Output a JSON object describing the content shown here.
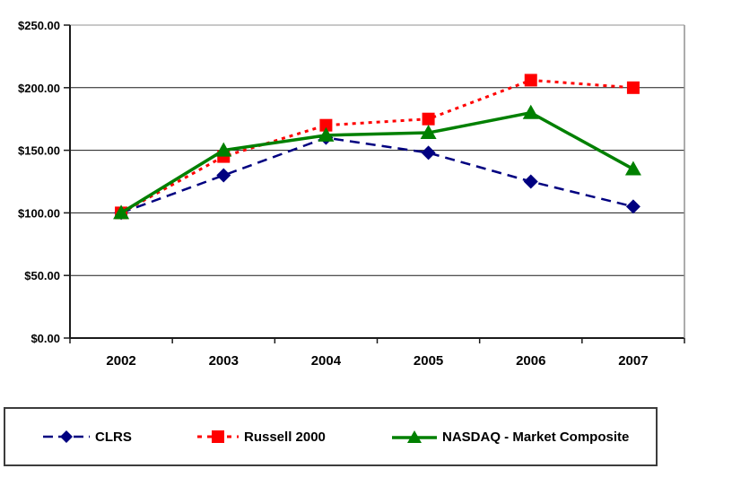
{
  "chart_data": {
    "type": "line",
    "title": "",
    "xlabel": "",
    "ylabel": "",
    "grid": true,
    "legend_position": "bottom",
    "categories": [
      "2002",
      "2003",
      "2004",
      "2005",
      "2006",
      "2007"
    ],
    "series": [
      {
        "name": "CLRS",
        "color": "#000080",
        "marker": "diamond",
        "line_style": "dashed",
        "values": [
          100,
          130,
          160,
          148,
          125,
          105
        ]
      },
      {
        "name": "Russell 2000",
        "color": "#FF0000",
        "marker": "square",
        "line_style": "dotted",
        "values": [
          100,
          145,
          170,
          175,
          206,
          200
        ]
      },
      {
        "name": "NASDAQ - Market Composite",
        "color": "#008000",
        "marker": "triangle",
        "line_style": "solid",
        "values": [
          100,
          150,
          162,
          164,
          180,
          135
        ]
      }
    ],
    "y_axis": {
      "min": 0,
      "max": 250,
      "step": 50,
      "tick_labels": [
        "$0.00",
        "$50.00",
        "$100.00",
        "$150.00",
        "$200.00",
        "$250.00"
      ]
    },
    "x_axis": {
      "tick_labels": [
        "2002",
        "2003",
        "2004",
        "2005",
        "2006",
        "2007"
      ]
    }
  }
}
